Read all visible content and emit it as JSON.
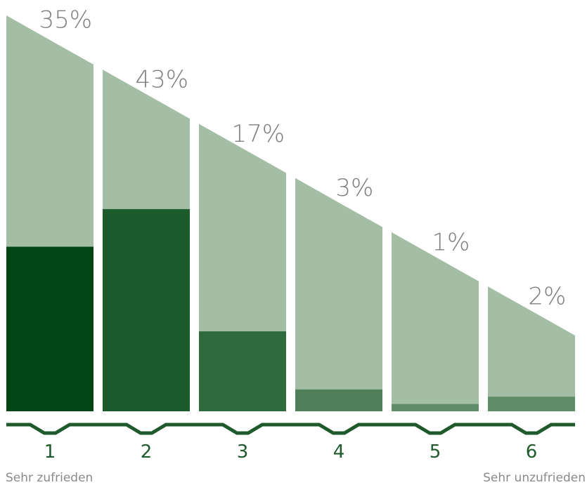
{
  "chart_data": {
    "type": "bar",
    "categories": [
      "1",
      "2",
      "3",
      "4",
      "5",
      "6"
    ],
    "values": [
      35,
      43,
      17,
      3,
      1,
      2
    ],
    "value_labels": [
      "35%",
      "43%",
      "17%",
      "3%",
      "1%",
      "2%"
    ],
    "ylim": [
      0,
      50
    ],
    "title": "",
    "xlabel": "",
    "ylabel": "",
    "scale_labels": {
      "left": "Sehr zufrieden",
      "right": "Sehr unzufrieden"
    },
    "grid": false,
    "legend": "none",
    "colors": {
      "background_shape": "#a3bea4",
      "bars": [
        "#024413",
        "#1b5b2c",
        "#2f6a3d",
        "#4f8059",
        "#5f8d67",
        "#5f8d67"
      ],
      "axis_line": "#1e5a2c",
      "value_label": "#7f7f7f",
      "category_label": "#1e5a2c",
      "scale_label": "#8a8a8a"
    }
  }
}
